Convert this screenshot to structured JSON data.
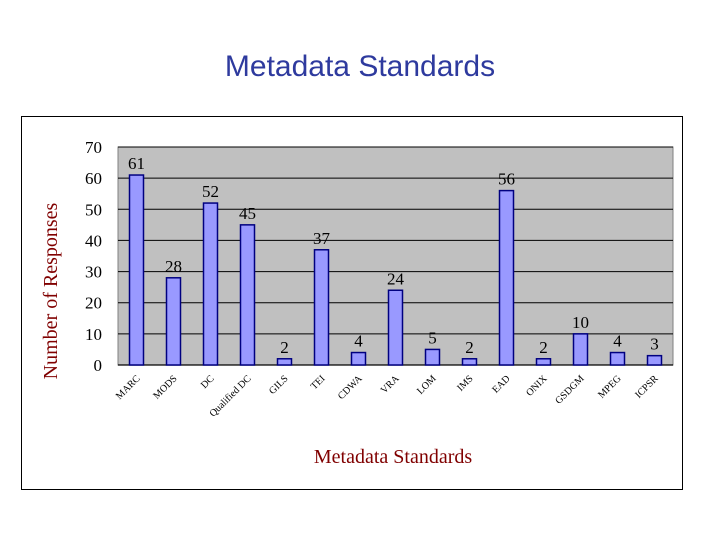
{
  "slide": {
    "title": "Metadata Standards"
  },
  "chart_data": {
    "type": "bar",
    "title": "",
    "xlabel": "Metadata Standards",
    "ylabel": "Number of Responses",
    "categories": [
      "MARC",
      "MODS",
      "DC",
      "Qualified DC",
      "GILS",
      "TEI",
      "CDWA",
      "VRA",
      "LOM",
      "IMS",
      "EAD",
      "ONIX",
      "GSDGM",
      "MPEG",
      "ICPSR"
    ],
    "values": [
      61,
      28,
      52,
      45,
      2,
      37,
      4,
      24,
      5,
      2,
      56,
      2,
      10,
      4,
      3
    ],
    "ylim": [
      0,
      70
    ],
    "yticks": [
      0,
      10,
      20,
      30,
      40,
      50,
      60,
      70
    ],
    "grid": true,
    "legend": "none",
    "colors": {
      "bar_fill": "#9999ff",
      "bar_stroke": "#000080",
      "plot_background": "#c0c0c0",
      "axis_label": "#800000",
      "title": "#2e3a9e"
    }
  }
}
